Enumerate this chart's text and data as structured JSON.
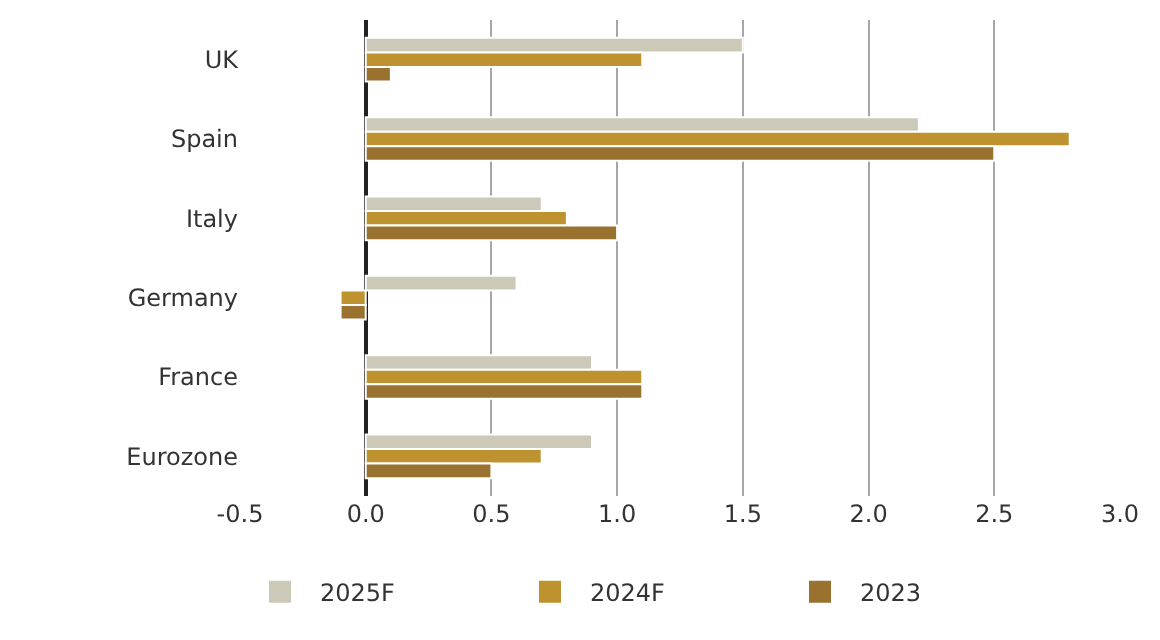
{
  "chart_data": {
    "type": "bar",
    "orientation": "horizontal",
    "categories": [
      "UK",
      "Spain",
      "Italy",
      "Germany",
      "France",
      "Eurozone"
    ],
    "series": [
      {
        "name": "2025F",
        "color": "#cdc9b9",
        "values": [
          1.5,
          2.2,
          0.7,
          0.6,
          0.9,
          0.9
        ]
      },
      {
        "name": "2024F",
        "color": "#bf9230",
        "values": [
          1.1,
          2.8,
          0.8,
          -0.1,
          1.1,
          0.7
        ]
      },
      {
        "name": "2023",
        "color": "#9a7230",
        "values": [
          0.1,
          2.5,
          1.0,
          -0.1,
          1.1,
          0.5
        ]
      }
    ],
    "xlim": [
      -0.5,
      3.0
    ],
    "xticks": [
      -0.5,
      {
        "value": 0,
        "label": "0.0"
      },
      0.5,
      {
        "value": 1,
        "label": "1.0"
      },
      1.5,
      {
        "value": 2,
        "label": "2.0"
      },
      2.5,
      {
        "value": 3,
        "label": "3.0"
      }
    ],
    "grid": "x",
    "legend": "bottom left"
  }
}
